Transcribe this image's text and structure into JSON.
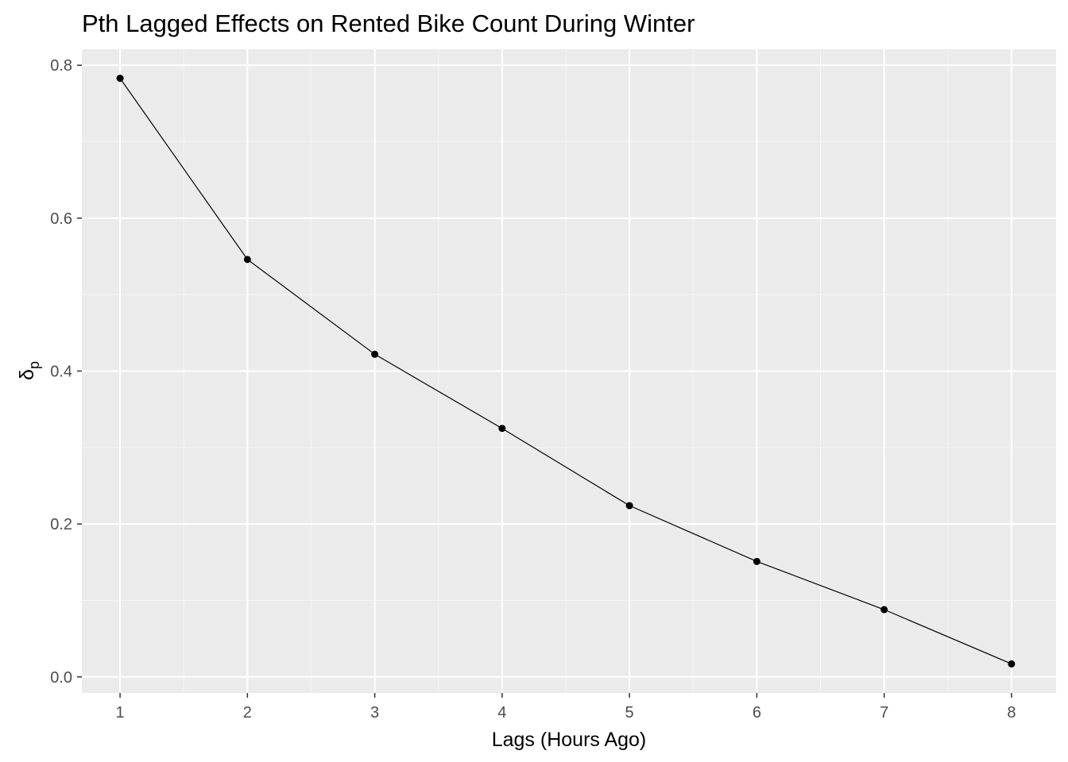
{
  "chart_data": {
    "type": "line",
    "title": "Pth Lagged Effects on Rented Bike Count During Winter",
    "xlabel": "Lags (Hours Ago)",
    "ylabel_symbol": "δ",
    "ylabel_subscript": "p",
    "x": [
      1,
      2,
      3,
      4,
      5,
      6,
      7,
      8
    ],
    "y": [
      0.783,
      0.546,
      0.422,
      0.325,
      0.224,
      0.151,
      0.088,
      0.017
    ],
    "x_ticks": [
      "1",
      "2",
      "3",
      "4",
      "5",
      "6",
      "7",
      "8"
    ],
    "y_ticks": [
      "0.0",
      "0.2",
      "0.4",
      "0.6",
      "0.8"
    ],
    "xlim": [
      0.7,
      8.35
    ],
    "ylim": [
      -0.021,
      0.821
    ],
    "grid": true,
    "legend": "none",
    "colors": {
      "panel": "#ebebeb",
      "grid_major": "#ffffff",
      "grid_minor": "#f5f5f5",
      "line": "#000000",
      "point": "#000000",
      "tick_text": "#4d4d4d"
    }
  }
}
